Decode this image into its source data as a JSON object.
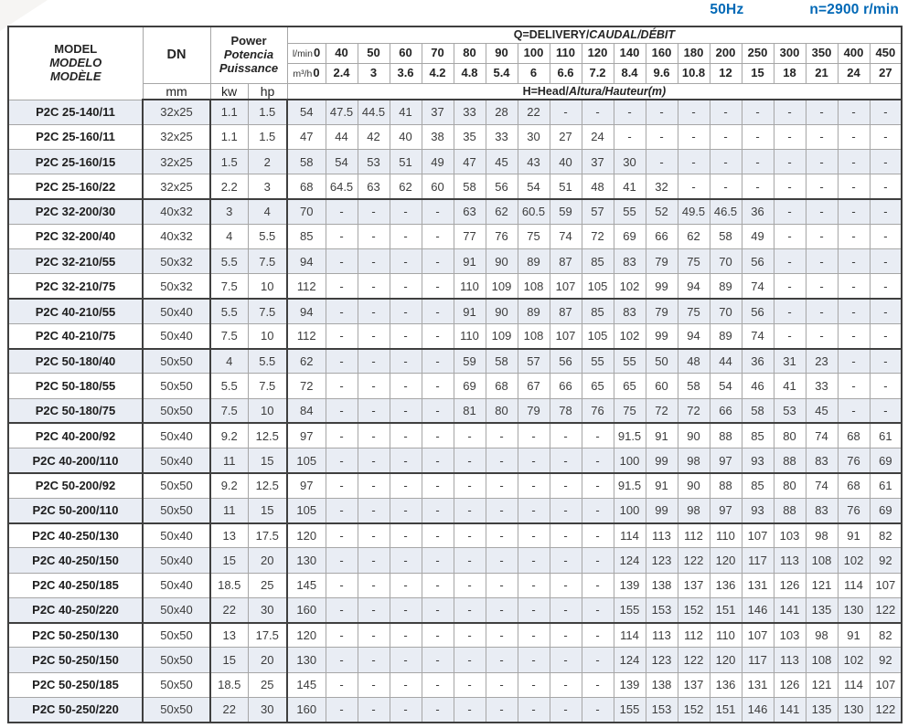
{
  "page": {
    "frequency": "50Hz",
    "speed": "n=2900 r/min"
  },
  "colors": {
    "accent_blue": "#0068b6",
    "row_shade": "#e9edf4",
    "border_light": "#a6a6a6",
    "border_dark": "#3f3f3f"
  },
  "header": {
    "model_lines": [
      "MODEL",
      "MODELO",
      "MODÈLE"
    ],
    "dn_label": "DN",
    "dn_unit": "mm",
    "power_lines": [
      "Power",
      "Potencia",
      "Puissance"
    ],
    "kw_label": "kw",
    "hp_label": "hp",
    "q_title_main": "Q=DELIVERY/",
    "q_title_italic": "CAUDAL/DÉBIT",
    "h_title_main": "H=Head/",
    "h_title_italic": "Altura/Hauteur(m)",
    "lmin_label": "l/min",
    "m3h_label": "m³/h",
    "flow_lmin": [
      "0",
      "40",
      "50",
      "60",
      "70",
      "80",
      "90",
      "100",
      "110",
      "120",
      "140",
      "160",
      "180",
      "200",
      "250",
      "300",
      "350",
      "400",
      "450"
    ],
    "flow_m3h": [
      "0",
      "2.4",
      "3",
      "3.6",
      "4.2",
      "4.8",
      "5.4",
      "6",
      "6.6",
      "7.2",
      "8.4",
      "9.6",
      "10.8",
      "12",
      "15",
      "18",
      "21",
      "24",
      "27"
    ]
  },
  "table": {
    "rows": [
      {
        "model": "P2C 25-140/11",
        "dn": "32x25",
        "kw": "1.1",
        "hp": "1.5",
        "group_start": false,
        "heads": [
          "54",
          "47.5",
          "44.5",
          "41",
          "37",
          "33",
          "28",
          "22",
          "-",
          "-",
          "-",
          "-",
          "-",
          "-",
          "-",
          "-",
          "-",
          "-",
          "-"
        ]
      },
      {
        "model": "P2C 25-160/11",
        "dn": "32x25",
        "kw": "1.1",
        "hp": "1.5",
        "group_start": false,
        "heads": [
          "47",
          "44",
          "42",
          "40",
          "38",
          "35",
          "33",
          "30",
          "27",
          "24",
          "-",
          "-",
          "-",
          "-",
          "-",
          "-",
          "-",
          "-",
          "-"
        ]
      },
      {
        "model": "P2C 25-160/15",
        "dn": "32x25",
        "kw": "1.5",
        "hp": "2",
        "group_start": false,
        "heads": [
          "58",
          "54",
          "53",
          "51",
          "49",
          "47",
          "45",
          "43",
          "40",
          "37",
          "30",
          "-",
          "-",
          "-",
          "-",
          "-",
          "-",
          "-",
          "-"
        ]
      },
      {
        "model": "P2C 25-160/22",
        "dn": "32x25",
        "kw": "2.2",
        "hp": "3",
        "group_start": false,
        "heads": [
          "68",
          "64.5",
          "63",
          "62",
          "60",
          "58",
          "56",
          "54",
          "51",
          "48",
          "41",
          "32",
          "-",
          "-",
          "-",
          "-",
          "-",
          "-",
          "-"
        ]
      },
      {
        "model": "P2C 32-200/30",
        "dn": "40x32",
        "kw": "3",
        "hp": "4",
        "group_start": true,
        "heads": [
          "70",
          "-",
          "-",
          "-",
          "-",
          "63",
          "62",
          "60.5",
          "59",
          "57",
          "55",
          "52",
          "49.5",
          "46.5",
          "36",
          "-",
          "-",
          "-",
          "-"
        ]
      },
      {
        "model": "P2C 32-200/40",
        "dn": "40x32",
        "kw": "4",
        "hp": "5.5",
        "group_start": false,
        "heads": [
          "85",
          "-",
          "-",
          "-",
          "-",
          "77",
          "76",
          "75",
          "74",
          "72",
          "69",
          "66",
          "62",
          "58",
          "49",
          "-",
          "-",
          "-",
          "-"
        ]
      },
      {
        "model": "P2C 32-210/55",
        "dn": "50x32",
        "kw": "5.5",
        "hp": "7.5",
        "group_start": false,
        "heads": [
          "94",
          "-",
          "-",
          "-",
          "-",
          "91",
          "90",
          "89",
          "87",
          "85",
          "83",
          "79",
          "75",
          "70",
          "56",
          "-",
          "-",
          "-",
          "-"
        ]
      },
      {
        "model": "P2C 32-210/75",
        "dn": "50x32",
        "kw": "7.5",
        "hp": "10",
        "group_start": false,
        "heads": [
          "112",
          "-",
          "-",
          "-",
          "-",
          "110",
          "109",
          "108",
          "107",
          "105",
          "102",
          "99",
          "94",
          "89",
          "74",
          "-",
          "-",
          "-",
          "-"
        ]
      },
      {
        "model": "P2C 40-210/55",
        "dn": "50x40",
        "kw": "5.5",
        "hp": "7.5",
        "group_start": true,
        "heads": [
          "94",
          "-",
          "-",
          "-",
          "-",
          "91",
          "90",
          "89",
          "87",
          "85",
          "83",
          "79",
          "75",
          "70",
          "56",
          "-",
          "-",
          "-",
          "-"
        ]
      },
      {
        "model": "P2C 40-210/75",
        "dn": "50x40",
        "kw": "7.5",
        "hp": "10",
        "group_start": false,
        "heads": [
          "112",
          "-",
          "-",
          "-",
          "-",
          "110",
          "109",
          "108",
          "107",
          "105",
          "102",
          "99",
          "94",
          "89",
          "74",
          "-",
          "-",
          "-",
          "-"
        ]
      },
      {
        "model": "P2C 50-180/40",
        "dn": "50x50",
        "kw": "4",
        "hp": "5.5",
        "group_start": true,
        "heads": [
          "62",
          "-",
          "-",
          "-",
          "-",
          "59",
          "58",
          "57",
          "56",
          "55",
          "55",
          "50",
          "48",
          "44",
          "36",
          "31",
          "23",
          "-",
          "-"
        ]
      },
      {
        "model": "P2C 50-180/55",
        "dn": "50x50",
        "kw": "5.5",
        "hp": "7.5",
        "group_start": false,
        "heads": [
          "72",
          "-",
          "-",
          "-",
          "-",
          "69",
          "68",
          "67",
          "66",
          "65",
          "65",
          "60",
          "58",
          "54",
          "46",
          "41",
          "33",
          "-",
          "-"
        ]
      },
      {
        "model": "P2C 50-180/75",
        "dn": "50x50",
        "kw": "7.5",
        "hp": "10",
        "group_start": false,
        "heads": [
          "84",
          "-",
          "-",
          "-",
          "-",
          "81",
          "80",
          "79",
          "78",
          "76",
          "75",
          "72",
          "72",
          "66",
          "58",
          "53",
          "45",
          "-",
          "-"
        ]
      },
      {
        "model": "P2C 40-200/92",
        "dn": "50x40",
        "kw": "9.2",
        "hp": "12.5",
        "group_start": true,
        "heads": [
          "97",
          "-",
          "-",
          "-",
          "-",
          "-",
          "-",
          "-",
          "-",
          "-",
          "91.5",
          "91",
          "90",
          "88",
          "85",
          "80",
          "74",
          "68",
          "61"
        ]
      },
      {
        "model": "P2C 40-200/110",
        "dn": "50x40",
        "kw": "11",
        "hp": "15",
        "group_start": false,
        "heads": [
          "105",
          "-",
          "-",
          "-",
          "-",
          "-",
          "-",
          "-",
          "-",
          "-",
          "100",
          "99",
          "98",
          "97",
          "93",
          "88",
          "83",
          "76",
          "69"
        ]
      },
      {
        "model": "P2C 50-200/92",
        "dn": "50x50",
        "kw": "9.2",
        "hp": "12.5",
        "group_start": true,
        "heads": [
          "97",
          "-",
          "-",
          "-",
          "-",
          "-",
          "-",
          "-",
          "-",
          "-",
          "91.5",
          "91",
          "90",
          "88",
          "85",
          "80",
          "74",
          "68",
          "61"
        ]
      },
      {
        "model": "P2C 50-200/110",
        "dn": "50x50",
        "kw": "11",
        "hp": "15",
        "group_start": false,
        "heads": [
          "105",
          "-",
          "-",
          "-",
          "-",
          "-",
          "-",
          "-",
          "-",
          "-",
          "100",
          "99",
          "98",
          "97",
          "93",
          "88",
          "83",
          "76",
          "69"
        ]
      },
      {
        "model": "P2C 40-250/130",
        "dn": "50x40",
        "kw": "13",
        "hp": "17.5",
        "group_start": true,
        "heads": [
          "120",
          "-",
          "-",
          "-",
          "-",
          "-",
          "-",
          "-",
          "-",
          "-",
          "114",
          "113",
          "112",
          "110",
          "107",
          "103",
          "98",
          "91",
          "82"
        ]
      },
      {
        "model": "P2C 40-250/150",
        "dn": "50x40",
        "kw": "15",
        "hp": "20",
        "group_start": false,
        "heads": [
          "130",
          "-",
          "-",
          "-",
          "-",
          "-",
          "-",
          "-",
          "-",
          "-",
          "124",
          "123",
          "122",
          "120",
          "117",
          "113",
          "108",
          "102",
          "92"
        ]
      },
      {
        "model": "P2C 40-250/185",
        "dn": "50x40",
        "kw": "18.5",
        "hp": "25",
        "group_start": false,
        "heads": [
          "145",
          "-",
          "-",
          "-",
          "-",
          "-",
          "-",
          "-",
          "-",
          "-",
          "139",
          "138",
          "137",
          "136",
          "131",
          "126",
          "121",
          "114",
          "107"
        ]
      },
      {
        "model": "P2C 40-250/220",
        "dn": "50x40",
        "kw": "22",
        "hp": "30",
        "group_start": false,
        "heads": [
          "160",
          "-",
          "-",
          "-",
          "-",
          "-",
          "-",
          "-",
          "-",
          "-",
          "155",
          "153",
          "152",
          "151",
          "146",
          "141",
          "135",
          "130",
          "122"
        ]
      },
      {
        "model": "P2C 50-250/130",
        "dn": "50x50",
        "kw": "13",
        "hp": "17.5",
        "group_start": true,
        "heads": [
          "120",
          "-",
          "-",
          "-",
          "-",
          "-",
          "-",
          "-",
          "-",
          "-",
          "114",
          "113",
          "112",
          "110",
          "107",
          "103",
          "98",
          "91",
          "82"
        ]
      },
      {
        "model": "P2C 50-250/150",
        "dn": "50x50",
        "kw": "15",
        "hp": "20",
        "group_start": false,
        "heads": [
          "130",
          "-",
          "-",
          "-",
          "-",
          "-",
          "-",
          "-",
          "-",
          "-",
          "124",
          "123",
          "122",
          "120",
          "117",
          "113",
          "108",
          "102",
          "92"
        ]
      },
      {
        "model": "P2C 50-250/185",
        "dn": "50x50",
        "kw": "18.5",
        "hp": "25",
        "group_start": false,
        "heads": [
          "145",
          "-",
          "-",
          "-",
          "-",
          "-",
          "-",
          "-",
          "-",
          "-",
          "139",
          "138",
          "137",
          "136",
          "131",
          "126",
          "121",
          "114",
          "107"
        ]
      },
      {
        "model": "P2C 50-250/220",
        "dn": "50x50",
        "kw": "22",
        "hp": "30",
        "group_start": false,
        "heads": [
          "160",
          "-",
          "-",
          "-",
          "-",
          "-",
          "-",
          "-",
          "-",
          "-",
          "155",
          "153",
          "152",
          "151",
          "146",
          "141",
          "135",
          "130",
          "122"
        ]
      }
    ]
  }
}
